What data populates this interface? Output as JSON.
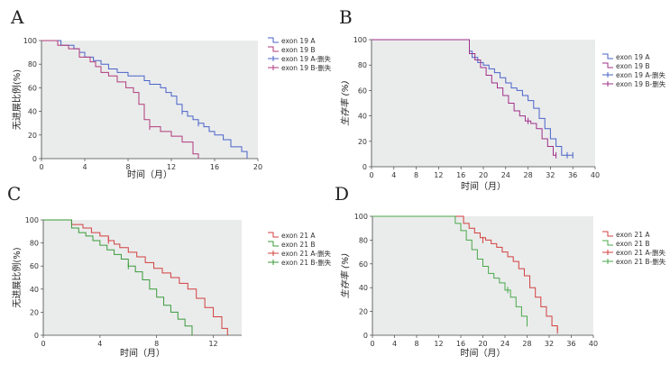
{
  "chart_data": [
    {
      "panel": "A",
      "type": "line",
      "xlabel": "时间（月）",
      "ylabel": "无进展比例(%)",
      "xlim": [
        0,
        20
      ],
      "ylim": [
        0,
        100
      ],
      "xticks": [
        0,
        4,
        8,
        12,
        16,
        20
      ],
      "yticks": [
        0,
        20,
        40,
        60,
        80,
        100
      ],
      "legend": "right",
      "legend_entries": [
        "exon 19 A",
        "exon 19 B",
        "exon 19 A-删失",
        "exon 19 B-删失"
      ],
      "series": [
        {
          "name": "exon 19 A",
          "color": "#4a62c8",
          "x": [
            0,
            1.8,
            2.5,
            3,
            3.5,
            4,
            4.8,
            5.5,
            6.2,
            7,
            8,
            8.8,
            9.5,
            10,
            10.5,
            11,
            11.5,
            12,
            12.5,
            13,
            13.5,
            14,
            14.5,
            15,
            15.5,
            16,
            16.8,
            17.5,
            18.5,
            19
          ],
          "y": [
            100,
            96,
            96,
            93,
            90,
            86,
            83,
            80,
            76,
            73,
            70,
            70,
            66,
            63,
            63,
            60,
            56,
            53,
            46,
            40,
            36,
            33,
            30,
            27,
            23,
            20,
            16,
            10,
            6,
            0
          ],
          "censored": [
            {
              "x": 13,
              "y": 40
            },
            {
              "x": 14.5,
              "y": 30
            }
          ]
        },
        {
          "name": "exon 19 B",
          "color": "#b03a7a",
          "x": [
            0,
            1.5,
            2.5,
            3.5,
            4.5,
            5,
            5.5,
            6.2,
            7,
            7.8,
            8.5,
            9,
            9.5,
            10,
            11,
            12,
            13,
            14,
            14.5
          ],
          "y": [
            100,
            96,
            93,
            86,
            82,
            78,
            73,
            70,
            65,
            60,
            56,
            46,
            33,
            27,
            23,
            19,
            14,
            4,
            0
          ],
          "censored": [
            {
              "x": 10,
              "y": 27
            }
          ]
        }
      ]
    },
    {
      "panel": "B",
      "type": "line",
      "xlabel": "时间（月）",
      "ylabel_cjk": "生存率",
      "ylabel_unit": "(%)",
      "xlim": [
        0,
        40
      ],
      "ylim": [
        0,
        100
      ],
      "xticks": [
        0,
        4,
        8,
        12,
        16,
        20,
        24,
        28,
        32,
        36,
        40
      ],
      "yticks": [
        0,
        20,
        40,
        60,
        80,
        100
      ],
      "legend": "right",
      "legend_entries": [
        "exon 19 A",
        "exon 19 B",
        "exon 19 A-删失",
        "exon 19 B-删失"
      ],
      "series": [
        {
          "name": "exon 19 A",
          "color": "#4a62c8",
          "x": [
            0,
            16.5,
            17.5,
            18,
            19,
            20,
            21,
            22,
            23,
            24,
            25,
            26,
            27,
            28,
            29,
            30,
            31,
            32,
            33,
            34,
            36
          ],
          "y": [
            100,
            100,
            91,
            86,
            82,
            80,
            77,
            74,
            70,
            66,
            62,
            60,
            56,
            52,
            46,
            38,
            30,
            22,
            16,
            9,
            9
          ],
          "censored": [
            {
              "x": 35,
              "y": 9
            },
            {
              "x": 36,
              "y": 9
            }
          ]
        },
        {
          "name": "exon 19 B",
          "color": "#a0308a",
          "x": [
            0,
            17,
            17.5,
            18.5,
            19.5,
            20.5,
            21.5,
            22.5,
            23.5,
            24.5,
            25.5,
            26.5,
            27.5,
            28.5,
            29.5,
            30.5,
            31.5,
            32.5,
            33
          ],
          "y": [
            100,
            100,
            89,
            84,
            78,
            72,
            66,
            62,
            56,
            50,
            44,
            40,
            36,
            34,
            30,
            22,
            16,
            9,
            9
          ],
          "censored": [
            {
              "x": 28,
              "y": 36
            },
            {
              "x": 33,
              "y": 9
            }
          ]
        }
      ]
    },
    {
      "panel": "C",
      "type": "line",
      "xlabel": "时间（月）",
      "ylabel": "无进展比例(%)",
      "xlim": [
        0,
        14
      ],
      "ylim": [
        0,
        100
      ],
      "xticks": [
        0,
        4,
        8,
        12
      ],
      "yticks": [
        0,
        20,
        40,
        60,
        80,
        100
      ],
      "legend": "right",
      "legend_entries": [
        "exon 21 A",
        "exon 21 B",
        "exon 21 A-删失",
        "exon 21 B-删失"
      ],
      "series": [
        {
          "name": "exon 21 A",
          "color": "#d33f3f",
          "x": [
            0,
            2,
            2.8,
            3.4,
            4,
            4.6,
            5,
            5.4,
            6,
            6.6,
            7.2,
            7.8,
            8.4,
            9,
            9.6,
            10.2,
            10.8,
            11.4,
            12,
            12.6,
            13
          ],
          "y": [
            100,
            96,
            93,
            89,
            86,
            82,
            79,
            76,
            72,
            68,
            63,
            58,
            54,
            50,
            45,
            40,
            32,
            24,
            16,
            6,
            0
          ],
          "censored": [
            {
              "x": 4.6,
              "y": 82
            }
          ]
        },
        {
          "name": "exon 21 B",
          "color": "#3a9a3a",
          "x": [
            0,
            2,
            2.5,
            3,
            3.5,
            4,
            4.5,
            5,
            5.5,
            6,
            6.5,
            7,
            7.5,
            8,
            8.5,
            9,
            9.5,
            10,
            10.5
          ],
          "y": [
            100,
            93,
            89,
            86,
            82,
            78,
            74,
            70,
            66,
            60,
            55,
            48,
            40,
            33,
            26,
            20,
            14,
            8,
            0
          ],
          "censored": [
            {
              "x": 6,
              "y": 60
            }
          ]
        }
      ]
    },
    {
      "panel": "D",
      "type": "line",
      "xlabel": "时间（月）",
      "ylabel_cjk": "生存率",
      "ylabel_unit": "(%)",
      "xlim": [
        0,
        40
      ],
      "ylim": [
        0,
        100
      ],
      "xticks": [
        0,
        4,
        8,
        12,
        16,
        20,
        24,
        28,
        32,
        36,
        40
      ],
      "yticks": [
        0,
        20,
        40,
        60,
        80,
        100
      ],
      "legend": "right",
      "legend_entries": [
        "exon 21 A",
        "exon 21 B",
        "exon 21 A-删失",
        "exon 21 B-删失"
      ],
      "series": [
        {
          "name": "exon 21 A",
          "color": "#d33f3f",
          "x": [
            0,
            15.5,
            16.5,
            17.5,
            18.5,
            19.5,
            20.5,
            21.5,
            22.5,
            23.5,
            24.5,
            25.5,
            26.5,
            27.5,
            28.5,
            29.5,
            30.5,
            31.5,
            32.5,
            33.5
          ],
          "y": [
            100,
            100,
            94,
            90,
            86,
            82,
            80,
            77,
            74,
            70,
            66,
            62,
            56,
            50,
            40,
            32,
            24,
            16,
            8,
            4
          ],
          "censored": [
            {
              "x": 20,
              "y": 80
            },
            {
              "x": 33.5,
              "y": 4
            }
          ]
        },
        {
          "name": "exon 21 B",
          "color": "#4aa84a",
          "x": [
            0,
            14,
            15,
            16,
            17,
            18,
            19,
            20,
            21,
            22,
            23,
            24,
            25,
            26,
            27,
            28
          ],
          "y": [
            100,
            100,
            94,
            88,
            80,
            72,
            64,
            58,
            52,
            48,
            44,
            38,
            32,
            24,
            16,
            10
          ],
          "censored": [
            {
              "x": 24.5,
              "y": 38
            },
            {
              "x": 28,
              "y": 10
            }
          ]
        }
      ]
    }
  ]
}
